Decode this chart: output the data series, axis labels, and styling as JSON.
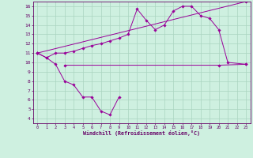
{
  "xlabel": "Windchill (Refroidissement éolien,°C)",
  "bg_color": "#cef0e0",
  "grid_color": "#aad4c0",
  "line_color": "#990099",
  "spine_color": "#660066",
  "xlim": [
    -0.5,
    23.5
  ],
  "ylim": [
    3.5,
    16.5
  ],
  "yticks": [
    4,
    5,
    6,
    7,
    8,
    9,
    10,
    11,
    12,
    13,
    14,
    15,
    16
  ],
  "xticks": [
    0,
    1,
    2,
    3,
    4,
    5,
    6,
    7,
    8,
    9,
    10,
    11,
    12,
    13,
    14,
    15,
    16,
    17,
    18,
    19,
    20,
    21,
    22,
    23
  ],
  "series1_x": [
    0,
    1,
    2,
    3,
    4,
    5,
    6,
    7,
    8,
    9,
    10,
    11,
    12,
    13,
    14,
    15,
    16,
    17,
    18,
    19,
    20,
    21,
    23
  ],
  "series1_y": [
    11.0,
    10.5,
    11.0,
    11.0,
    11.2,
    11.5,
    11.8,
    12.0,
    12.3,
    12.6,
    13.0,
    15.7,
    14.5,
    13.5,
    14.0,
    15.5,
    16.0,
    16.0,
    15.0,
    14.7,
    13.5,
    10.0,
    9.8
  ],
  "series2_x": [
    0,
    23
  ],
  "series2_y": [
    11.0,
    16.5
  ],
  "series3_x": [
    3,
    20,
    23
  ],
  "series3_y": [
    9.7,
    9.7,
    9.8
  ],
  "series4_x": [
    0,
    1,
    2,
    3,
    4,
    5,
    6,
    7,
    8,
    9
  ],
  "series4_y": [
    11.0,
    10.5,
    9.8,
    8.0,
    7.6,
    6.3,
    6.3,
    4.8,
    4.4,
    6.3
  ]
}
